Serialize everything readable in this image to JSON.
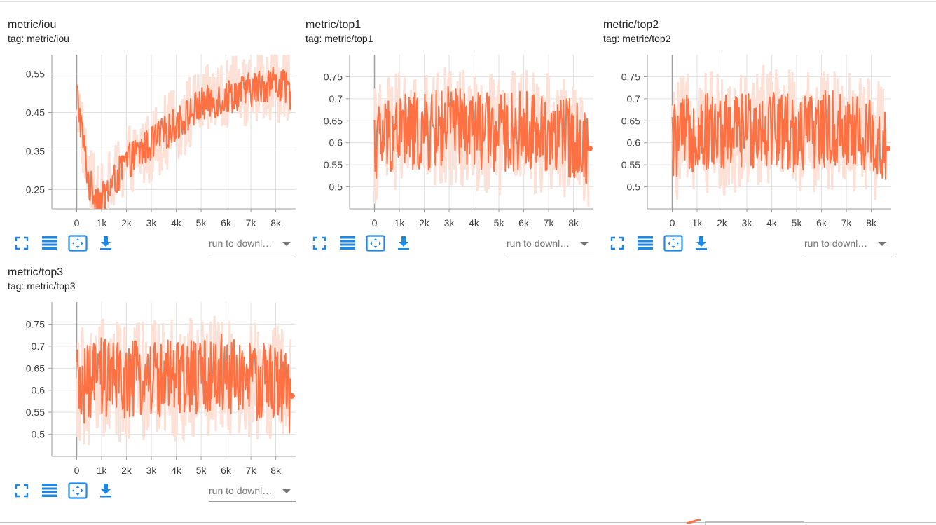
{
  "colors": {
    "series": "#ff7043",
    "series_raw": "#fde0d6",
    "grid": "#e0e0e0",
    "axis": "#9e9e9e",
    "icon": "#1e88e5"
  },
  "toolbar": {
    "icons": [
      "fullscreen-icon",
      "data-table-icon",
      "fit-domain-icon",
      "download-icon"
    ],
    "run_select_placeholder": "run to downl…"
  },
  "cards": [
    {
      "title": "metric/iou",
      "tag": "tag: metric/iou",
      "chart_data": {
        "type": "line",
        "title": "metric/iou",
        "xlabel": "",
        "ylabel": "",
        "x_ticks": [
          "0",
          "1k",
          "2k",
          "3k",
          "4k",
          "5k",
          "6k",
          "7k",
          "8k"
        ],
        "y_ticks": [
          "0.25",
          "0.35",
          "0.45",
          "0.55"
        ],
        "xlim": [
          -1000,
          8800
        ],
        "ylim": [
          0.2,
          0.6
        ],
        "grid": true,
        "smoothed_trend": {
          "x": [
            0,
            500,
            1000,
            2000,
            3000,
            4000,
            5000,
            6000,
            7000,
            8000,
            8600
          ],
          "y": [
            0.5,
            0.26,
            0.22,
            0.32,
            0.37,
            0.42,
            0.47,
            0.49,
            0.51,
            0.53,
            0.5
          ]
        },
        "amplitude": 0.045,
        "raw_amplitude": 0.1
      }
    },
    {
      "title": "metric/top1",
      "tag": "tag: metric/top1",
      "chart_data": {
        "type": "line",
        "title": "metric/top1",
        "xlabel": "",
        "ylabel": "",
        "x_ticks": [
          "0",
          "1k",
          "2k",
          "3k",
          "4k",
          "5k",
          "6k",
          "7k",
          "8k"
        ],
        "y_ticks": [
          "0.5",
          "0.55",
          "0.6",
          "0.65",
          "0.7",
          "0.75"
        ],
        "xlim": [
          -1000,
          8800
        ],
        "ylim": [
          0.45,
          0.8
        ],
        "grid": true,
        "smoothed_trend": {
          "x": [
            0,
            1000,
            2000,
            3000,
            4000,
            5000,
            6000,
            7000,
            8000,
            8600
          ],
          "y": [
            0.6,
            0.63,
            0.62,
            0.64,
            0.63,
            0.62,
            0.63,
            0.62,
            0.61,
            0.59
          ]
        },
        "amplitude": 0.09,
        "raw_amplitude": 0.14,
        "last_point": 0.587
      }
    },
    {
      "title": "metric/top2",
      "tag": "tag: metric/top2",
      "chart_data": {
        "type": "line",
        "title": "metric/top2",
        "xlabel": "",
        "ylabel": "",
        "x_ticks": [
          "0",
          "1k",
          "2k",
          "3k",
          "4k",
          "5k",
          "6k",
          "7k",
          "8k"
        ],
        "y_ticks": [
          "0.5",
          "0.55",
          "0.6",
          "0.65",
          "0.7",
          "0.75"
        ],
        "xlim": [
          -1000,
          8800
        ],
        "ylim": [
          0.45,
          0.8
        ],
        "grid": true,
        "smoothed_trend": {
          "x": [
            0,
            1000,
            2000,
            3000,
            4000,
            5000,
            6000,
            7000,
            8000,
            8600
          ],
          "y": [
            0.6,
            0.63,
            0.62,
            0.63,
            0.64,
            0.62,
            0.63,
            0.63,
            0.61,
            0.59
          ]
        },
        "amplitude": 0.09,
        "raw_amplitude": 0.14,
        "last_point": 0.587
      }
    },
    {
      "title": "metric/top3",
      "tag": "tag: metric/top3",
      "chart_data": {
        "type": "line",
        "title": "metric/top3",
        "xlabel": "",
        "ylabel": "",
        "x_ticks": [
          "0",
          "1k",
          "2k",
          "3k",
          "4k",
          "5k",
          "6k",
          "7k",
          "8k"
        ],
        "y_ticks": [
          "0.5",
          "0.55",
          "0.6",
          "0.65",
          "0.7",
          "0.75"
        ],
        "xlim": [
          -1000,
          8800
        ],
        "ylim": [
          0.45,
          0.8
        ],
        "grid": true,
        "smoothed_trend": {
          "x": [
            0,
            1000,
            2000,
            3000,
            4000,
            5000,
            6000,
            7000,
            8000,
            8600
          ],
          "y": [
            0.6,
            0.63,
            0.62,
            0.63,
            0.62,
            0.63,
            0.64,
            0.62,
            0.62,
            0.59
          ]
        },
        "amplitude": 0.09,
        "raw_amplitude": 0.14,
        "last_point": 0.587
      }
    }
  ]
}
